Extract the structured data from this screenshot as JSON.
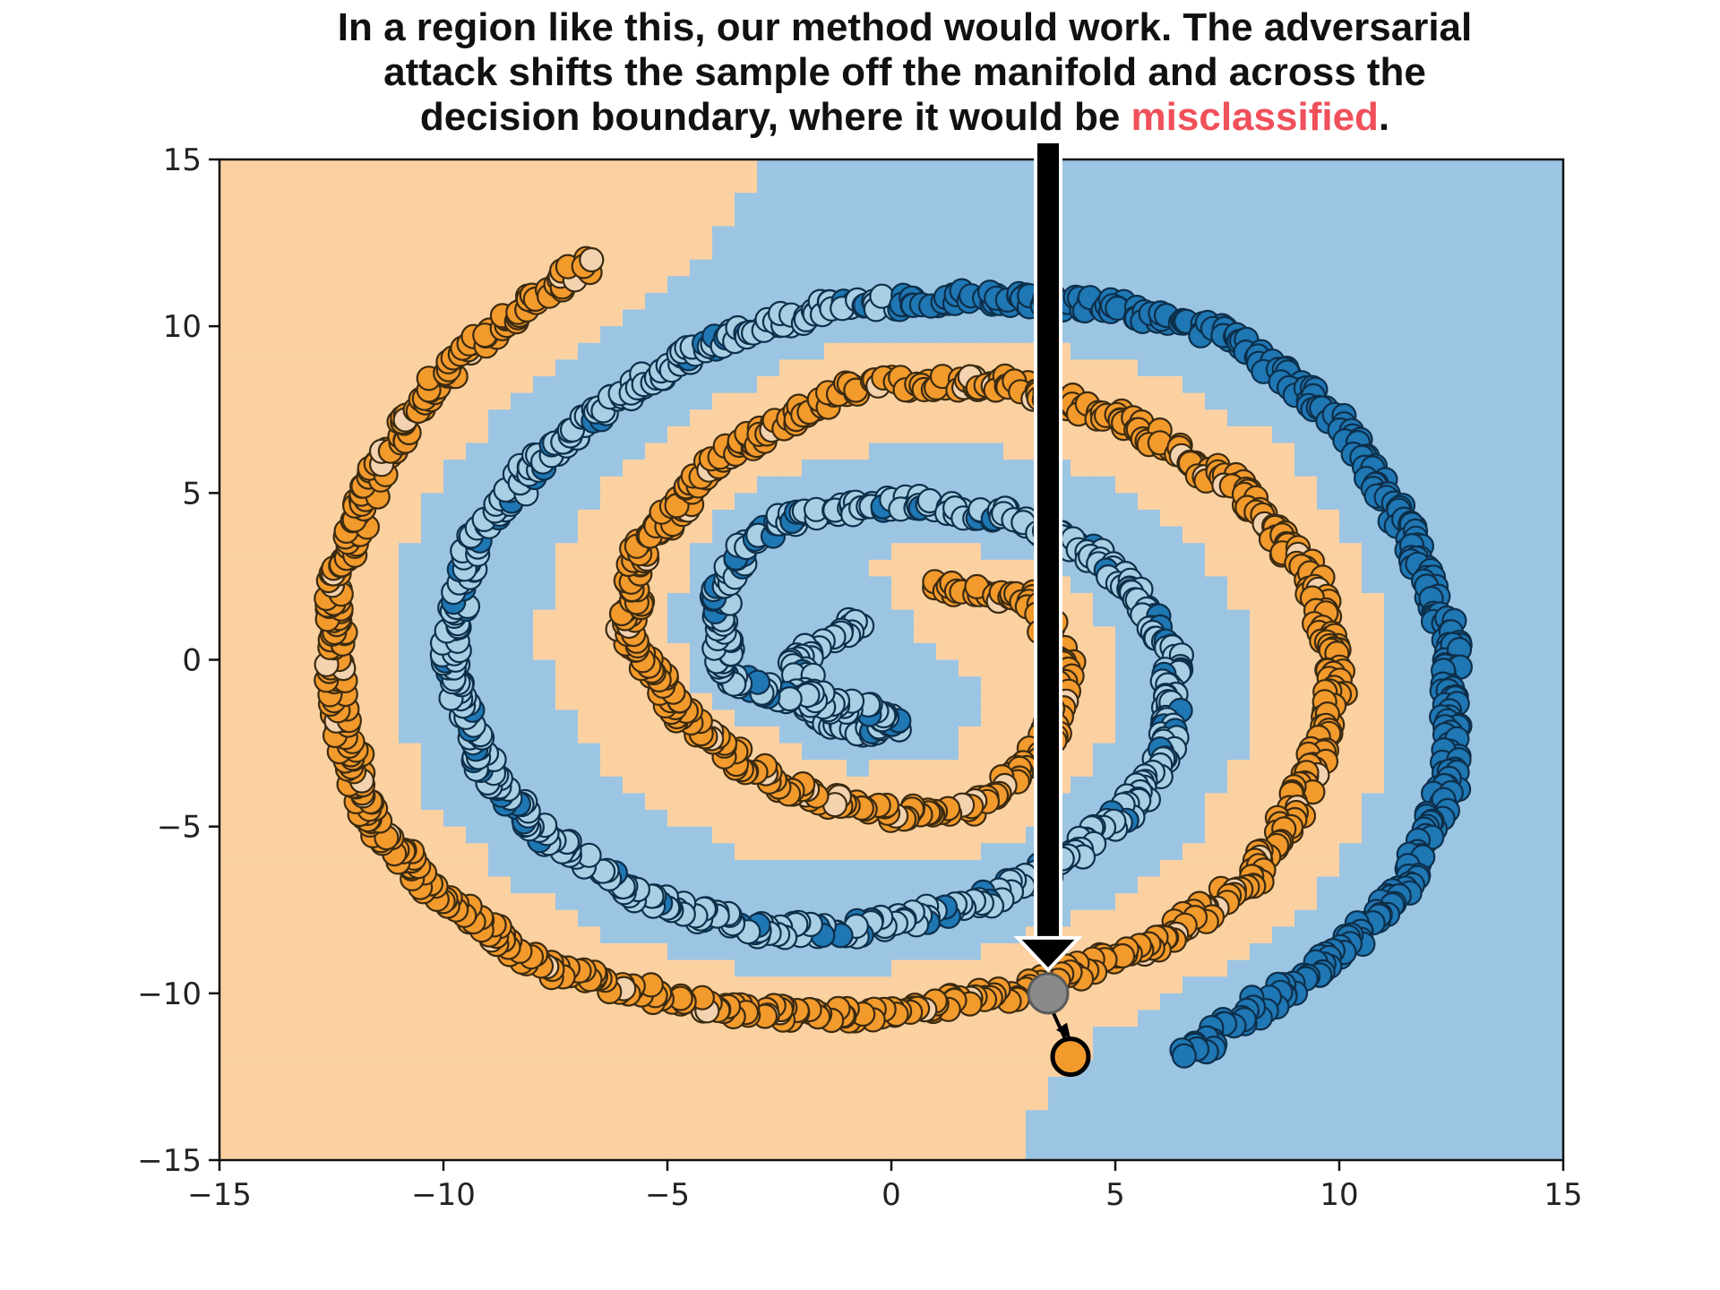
{
  "caption": {
    "line1": "In a region like this, our method would work. The adversarial",
    "line2": "attack shifts the sample off the manifold and across the",
    "line3_before": "decision boundary, where it would be ",
    "line3_highlight": "misclassified",
    "line3_after": "."
  },
  "colors": {
    "region_orange": "#fbd1a2",
    "region_blue": "#9cc5e3",
    "class_orange": "#f39a2c",
    "class_orange_light": "#f3d2b0",
    "class_blue_dark": "#1f77b4",
    "class_blue_light": "#a8cfe4",
    "marker_edge": "#3a2a10",
    "marker_edge_blue": "#0d2f4a",
    "highlight_text": "#f0505a",
    "original_sample": "#8a8a8a"
  },
  "chart_data": {
    "type": "scatter",
    "title": "",
    "xlabel": "",
    "ylabel": "",
    "xlim": [
      -15,
      15
    ],
    "ylim": [
      -15,
      15
    ],
    "xticks": [
      -15,
      -10,
      -5,
      0,
      5,
      10,
      15
    ],
    "yticks": [
      -15,
      -10,
      -5,
      0,
      5,
      10,
      15
    ],
    "xtick_labels": [
      "−15",
      "−10",
      "−5",
      "0",
      "5",
      "10",
      "15"
    ],
    "ytick_labels": [
      "−15",
      "−10",
      "−5",
      "0",
      "5",
      "10",
      "15"
    ],
    "grid": false,
    "legend": "none",
    "series": [
      {
        "class": "orange",
        "description_points": [
          [
            1.0,
            2.2
          ],
          [
            3.2,
            1.8
          ],
          [
            3.9,
            0.0
          ],
          [
            3.5,
            -2.5
          ],
          [
            2.0,
            -4.4
          ],
          [
            0.0,
            -4.6
          ],
          [
            -2.5,
            -3.8
          ],
          [
            -4.3,
            -2.2
          ],
          [
            -5.9,
            0.7
          ],
          [
            -5.6,
            3.3
          ],
          [
            -3.8,
            6.1
          ],
          [
            -0.6,
            8.3
          ],
          [
            2.6,
            8.3
          ],
          [
            5.5,
            7.0
          ],
          [
            7.9,
            5.0
          ],
          [
            9.4,
            2.5
          ],
          [
            10.0,
            -0.5
          ],
          [
            9.4,
            -3.5
          ],
          [
            8.0,
            -6.7
          ],
          [
            5.8,
            -8.6
          ],
          [
            2.7,
            -10.0
          ],
          [
            -0.4,
            -10.7
          ],
          [
            -3.7,
            -10.5
          ],
          [
            -7.6,
            -9.3
          ],
          [
            -10.2,
            -7.0
          ],
          [
            -11.7,
            -4.7
          ],
          [
            -12.4,
            -1.2
          ],
          [
            -12.4,
            2.3
          ],
          [
            -11.7,
            5.0
          ],
          [
            -10.5,
            7.9
          ],
          [
            -8.8,
            10.0
          ],
          [
            -6.6,
            12.0
          ]
        ]
      },
      {
        "class": "blue",
        "description_points": [
          [
            -0.7,
            1.1
          ],
          [
            -2.1,
            0.1
          ],
          [
            -1.8,
            -1.6
          ],
          [
            -0.9,
            -2.2
          ],
          [
            0.2,
            -1.8
          ],
          [
            -3.6,
            -0.6
          ],
          [
            -3.9,
            1.5
          ],
          [
            -3.3,
            3.4
          ],
          [
            -2.0,
            4.4
          ],
          [
            0.5,
            4.7
          ],
          [
            2.6,
            4.3
          ],
          [
            4.2,
            3.5
          ],
          [
            5.5,
            2.0
          ],
          [
            6.3,
            0.0
          ],
          [
            6.2,
            -2.5
          ],
          [
            5.4,
            -4.3
          ],
          [
            4.0,
            -5.9
          ],
          [
            2.0,
            -7.3
          ],
          [
            -0.8,
            -8.1
          ],
          [
            -3.0,
            -8.1
          ],
          [
            -5.6,
            -7.1
          ],
          [
            -7.6,
            -5.4
          ],
          [
            -9.0,
            -3.5
          ],
          [
            -9.9,
            0.0
          ],
          [
            -9.4,
            3.4
          ],
          [
            -8.2,
            5.5
          ],
          [
            -6.7,
            7.3
          ],
          [
            -4.4,
            9.3
          ],
          [
            -1.7,
            10.5
          ],
          [
            1.5,
            10.9
          ],
          [
            5.0,
            10.6
          ],
          [
            7.7,
            9.7
          ],
          [
            10.0,
            7.2
          ],
          [
            11.5,
            4.0
          ],
          [
            12.5,
            0.5
          ],
          [
            12.5,
            -3.5
          ],
          [
            11.5,
            -6.8
          ],
          [
            9.8,
            -9.0
          ],
          [
            7.5,
            -11.0
          ],
          [
            6.5,
            -12.0
          ]
        ]
      }
    ],
    "adversarial_example": {
      "original": [
        3.5,
        -10.0
      ],
      "perturbed": [
        4.0,
        -11.9
      ]
    }
  }
}
